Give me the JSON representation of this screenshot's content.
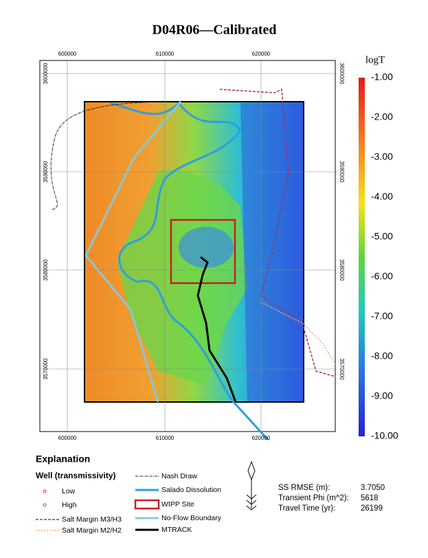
{
  "header": {
    "title": "D04R06—Calibrated"
  },
  "map": {
    "x_ticks": [
      "600000",
      "610000",
      "620000"
    ],
    "y_ticks": [
      "3600000",
      "3590000",
      "3580000",
      "3570000"
    ]
  },
  "colorbar": {
    "title": "logT",
    "labels": [
      "-1.00",
      "-2.00",
      "-3.00",
      "-4.00",
      "-5.00",
      "-6.00",
      "-7.00",
      "-8.00",
      "-9.00",
      "-10.00"
    ]
  },
  "explanation": {
    "title": "Explanation",
    "well_title": "Well (transmissivity)",
    "items": [
      "Low",
      "High",
      "Salt Margin M3/H3",
      "Salt Margin M2/H2",
      "Nash Draw",
      "Salado Dissolution",
      "WIPP Site",
      "No-Flow Boundary",
      "MTRACK"
    ]
  },
  "stats": [
    {
      "label": "SS RMSE (m):",
      "value": "3.7050"
    },
    {
      "label": "Transient Phi (m^2):",
      "value": "5618"
    },
    {
      "label": "Travel Time (yr):",
      "value": "26199"
    }
  ]
}
